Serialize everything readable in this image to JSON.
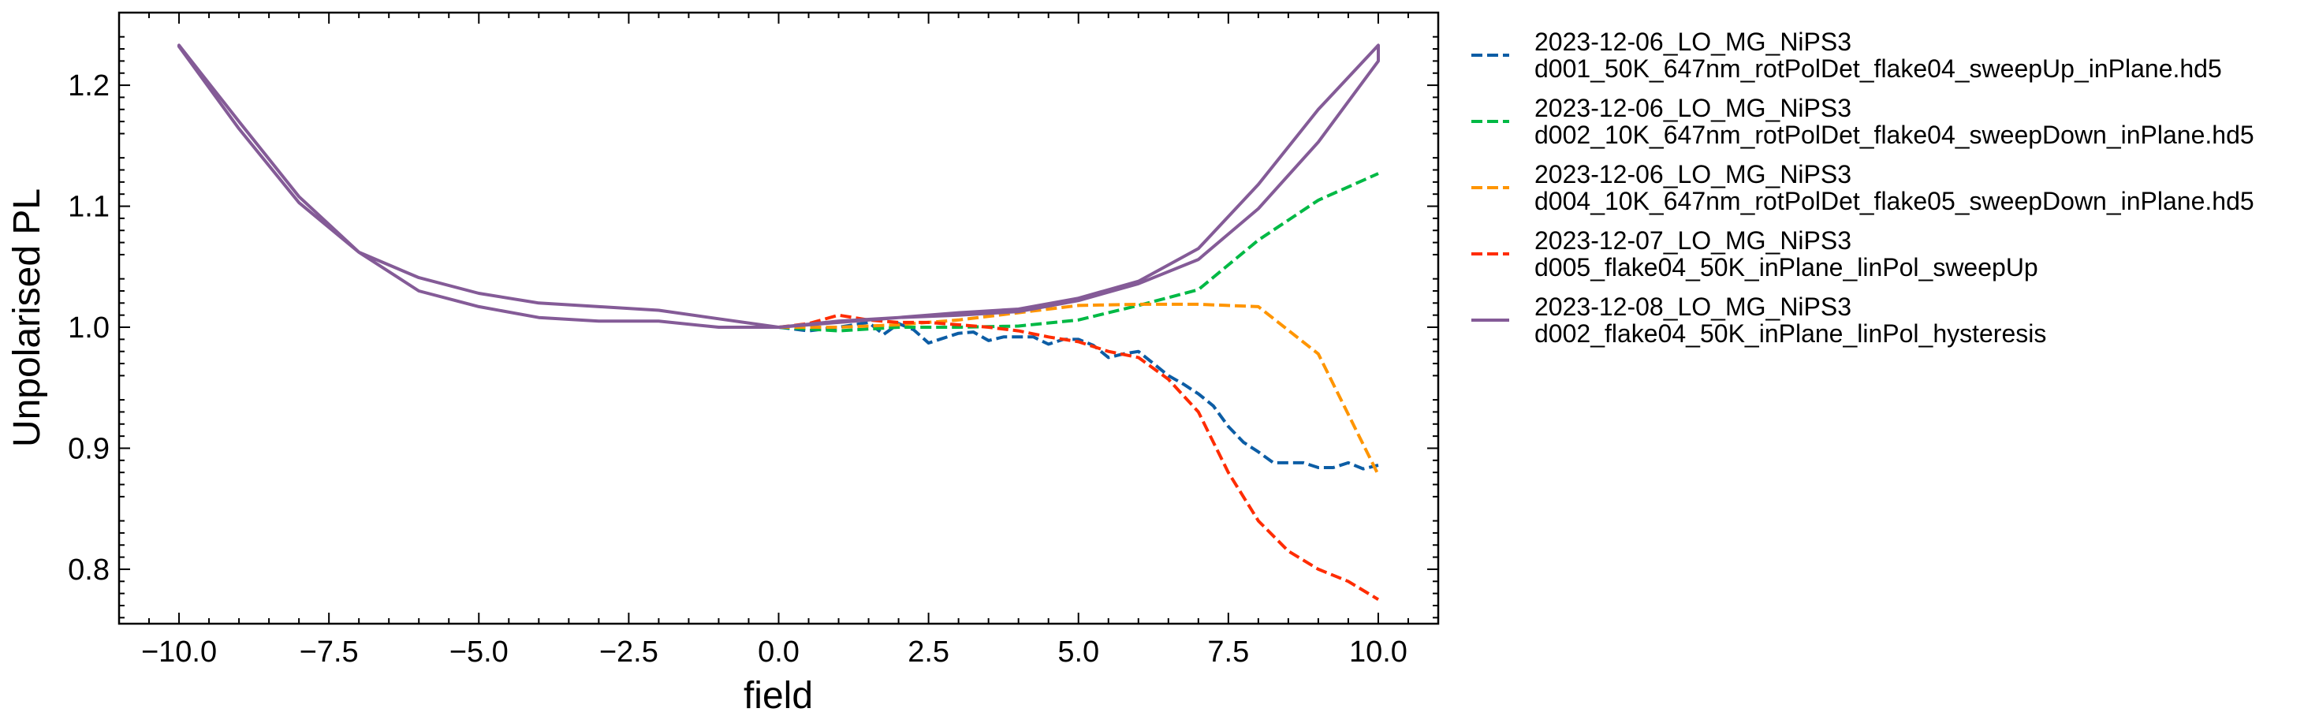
{
  "chart_data": {
    "type": "line",
    "title": "",
    "xlabel": "field",
    "ylabel": "Unpolarised PL",
    "xlim": [
      -11,
      11
    ],
    "ylim": [
      0.755,
      1.26
    ],
    "xticks": [
      -10.0,
      -7.5,
      -5.0,
      -2.5,
      0.0,
      2.5,
      5.0,
      7.5,
      10.0
    ],
    "xtick_labels": [
      "−10.0",
      "−7.5",
      "−5.0",
      "−2.5",
      "0.0",
      "2.5",
      "5.0",
      "7.5",
      "10.0"
    ],
    "yticks": [
      0.8,
      0.9,
      1.0,
      1.1,
      1.2
    ],
    "ytick_labels": [
      "0.8",
      "0.9",
      "1.0",
      "1.1",
      "1.2"
    ],
    "grid": false,
    "legend_placement": "outside-right",
    "series": [
      {
        "name": "2023-12-06_LO_MG_NiPS3\nd001_50K_647nm_rotPolDet_flake04_sweepUp_inPlane.hd5",
        "color": "#0c5da5",
        "style": "dashed",
        "x": [
          0,
          0.5,
          1,
          1.5,
          1.75,
          2,
          2.25,
          2.5,
          2.75,
          3,
          3.25,
          3.5,
          3.75,
          4,
          4.25,
          4.5,
          4.75,
          5,
          5.25,
          5.5,
          5.75,
          6,
          6.25,
          6.5,
          6.75,
          7,
          7.25,
          7.5,
          7.75,
          8,
          8.25,
          8.5,
          8.75,
          9,
          9.25,
          9.5,
          9.75,
          10
        ],
        "y": [
          1.0,
          0.997,
          1.0,
          1.004,
          0.994,
          1.003,
          0.998,
          0.987,
          0.991,
          0.995,
          0.996,
          0.989,
          0.992,
          0.992,
          0.992,
          0.986,
          0.99,
          0.99,
          0.985,
          0.975,
          0.978,
          0.98,
          0.97,
          0.96,
          0.953,
          0.945,
          0.935,
          0.918,
          0.905,
          0.897,
          0.888,
          0.888,
          0.888,
          0.884,
          0.884,
          0.888,
          0.883,
          0.886
        ]
      },
      {
        "name": "2023-12-06_LO_MG_NiPS3\nd002_10K_647nm_rotPolDet_flake04_sweepDown_inPlane.hd5",
        "color": "#00b945",
        "style": "dashed",
        "x": [
          0,
          1,
          2,
          3,
          4,
          5,
          6,
          7,
          8,
          9,
          10
        ],
        "y": [
          1.0,
          0.997,
          1.0,
          1.0,
          1.001,
          1.006,
          1.018,
          1.031,
          1.072,
          1.105,
          1.127
        ]
      },
      {
        "name": "2023-12-06_LO_MG_NiPS3\nd004_10K_647nm_rotPolDet_flake05_sweepDown_inPlane.hd5",
        "color": "#ff9500",
        "style": "dashed",
        "x": [
          0,
          1,
          2,
          3,
          4,
          5,
          6,
          7,
          8,
          9,
          10
        ],
        "y": [
          1.0,
          1.0,
          1.002,
          1.006,
          1.012,
          1.018,
          1.019,
          1.019,
          1.017,
          0.978,
          0.878
        ]
      },
      {
        "name": "2023-12-07_LO_MG_NiPS3\nd005_flake04_50K_inPlane_linPol_sweepUp",
        "color": "#ff2c00",
        "style": "dashed",
        "x": [
          0,
          0.5,
          1,
          1.5,
          2,
          2.5,
          3,
          3.5,
          4,
          4.5,
          5,
          5.5,
          6,
          6.5,
          7,
          7.5,
          8,
          8.5,
          9,
          9.5,
          10
        ],
        "y": [
          1.0,
          1.003,
          1.01,
          1.006,
          1.004,
          1.004,
          1.002,
          1.0,
          0.997,
          0.992,
          0.988,
          0.98,
          0.975,
          0.957,
          0.93,
          0.88,
          0.84,
          0.815,
          0.8,
          0.79,
          0.775
        ]
      },
      {
        "name": "2023-12-08_LO_MG_NiPS3\nd002_flake04_50K_inPlane_linPol_hysteresis",
        "color": "#845b97",
        "style": "solid",
        "x": [
          -10,
          -9,
          -8,
          -7,
          -6,
          -5,
          -4,
          -3,
          -2,
          -1,
          0,
          1,
          2,
          3,
          4,
          5,
          6,
          7,
          8,
          9,
          10,
          10,
          9,
          8,
          7,
          6,
          5,
          4,
          3,
          2,
          1,
          0,
          -1,
          -2,
          -3,
          -4,
          -5,
          -6,
          -7,
          -8,
          -9,
          -10
        ],
        "y": [
          1.233,
          1.17,
          1.108,
          1.062,
          1.041,
          1.028,
          1.02,
          1.017,
          1.014,
          1.007,
          1.0,
          1.005,
          1.008,
          1.012,
          1.015,
          1.024,
          1.038,
          1.065,
          1.118,
          1.18,
          1.233,
          1.22,
          1.153,
          1.098,
          1.056,
          1.036,
          1.022,
          1.013,
          1.01,
          1.008,
          1.004,
          1.0,
          1.0,
          1.005,
          1.005,
          1.008,
          1.017,
          1.03,
          1.062,
          1.103,
          1.164,
          1.232
        ]
      }
    ]
  }
}
